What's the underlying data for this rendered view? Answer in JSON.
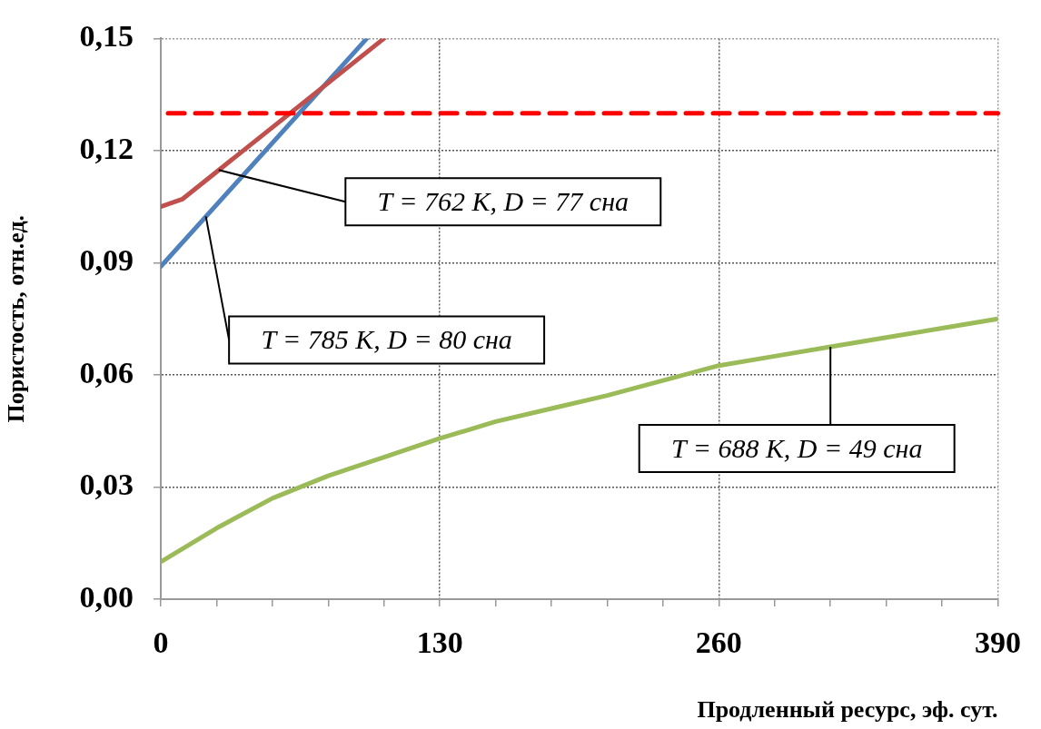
{
  "chart_data": {
    "type": "line",
    "xlabel": "Продленный ресурс, эф. сут.",
    "ylabel": "Пористость, отн.ед.",
    "xlim": [
      0,
      390
    ],
    "xticks": [
      0,
      {
        "value": 26,
        "label": null
      },
      {
        "value": 52,
        "label": null
      },
      {
        "value": 78,
        "label": null
      },
      {
        "value": 104,
        "label": null
      },
      130,
      {
        "value": 156,
        "label": null
      },
      {
        "value": 182,
        "label": null
      },
      {
        "value": 208,
        "label": null
      },
      {
        "value": 234,
        "label": null
      },
      260,
      {
        "value": 286,
        "label": null
      },
      {
        "value": 312,
        "label": null
      },
      {
        "value": 338,
        "label": null
      },
      {
        "value": 364,
        "label": null
      },
      390
    ],
    "ylim": [
      0,
      0.15
    ],
    "yticks": [
      {
        "value": 0,
        "label": "0,00"
      },
      {
        "value": 0.03,
        "label": "0,03"
      },
      {
        "value": 0.06,
        "label": "0,06"
      },
      {
        "value": 0.09,
        "label": "0,09"
      },
      {
        "value": 0.12,
        "label": "0,12"
      },
      {
        "value": 0.15,
        "label": "0,15"
      }
    ],
    "grid": true,
    "legend": false,
    "marker": "none",
    "line_style": "solid",
    "series": [
      {
        "color": "#c0504d",
        "x": [
          0,
          10,
          104
        ],
        "values": [
          0.105,
          0.107,
          0.15
        ]
      },
      {
        "color": "#4f81bd",
        "x": [
          0,
          96
        ],
        "values": [
          0.089,
          0.15
        ]
      },
      {
        "color": "#9bbb59",
        "x": [
          0,
          26,
          52,
          78,
          104,
          130,
          156,
          182,
          208,
          234,
          260,
          286,
          312,
          338,
          364,
          390
        ],
        "values": [
          0.01,
          0.019,
          0.027,
          0.033,
          0.038,
          0.043,
          0.0475,
          0.051,
          0.0545,
          0.0585,
          0.0625,
          0.065,
          0.0675,
          0.07,
          0.0725,
          0.075
        ]
      }
    ],
    "ref_lines": [
      {
        "axis": "y",
        "value": 0.13,
        "color": "#ff0000",
        "line_style": "dashed"
      }
    ],
    "annotations": [
      {
        "text": "T = 762 К, D = 77 сна",
        "x": 27,
        "y": 0.1148
      },
      {
        "text": "T = 785 К, D = 80 сна",
        "x": 21,
        "y": 0.1024
      },
      {
        "text": "T = 688 К, D = 49 сна",
        "x": 312,
        "y": 0.0675
      }
    ]
  }
}
